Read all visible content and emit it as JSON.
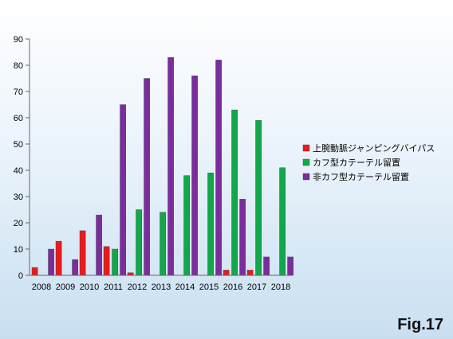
{
  "figure_label": "Fig.17",
  "chart_data": {
    "type": "bar",
    "categories": [
      "2008",
      "2009",
      "2010",
      "2011",
      "2012",
      "2013",
      "2014",
      "2015",
      "2016",
      "2017",
      "2018"
    ],
    "series": [
      {
        "name": "上腕動脈ジャンピングバイパス",
        "color": "#e81b1b",
        "values": [
          3,
          13,
          17,
          11,
          1,
          0,
          0,
          0,
          2,
          2,
          0
        ]
      },
      {
        "name": "カフ型カテーテル留置",
        "color": "#12a74a",
        "values": [
          0,
          0,
          0,
          10,
          25,
          24,
          38,
          39,
          63,
          59,
          41
        ]
      },
      {
        "name": "非カフ型カテーテル留置",
        "color": "#7a2d9c",
        "values": [
          10,
          6,
          23,
          65,
          75,
          83,
          76,
          82,
          29,
          7,
          7
        ]
      }
    ],
    "ylim": [
      0,
      90
    ],
    "yticks": [
      0,
      10,
      20,
      30,
      40,
      50,
      60,
      70,
      80,
      90
    ],
    "grid": false,
    "legend_position": "right"
  }
}
